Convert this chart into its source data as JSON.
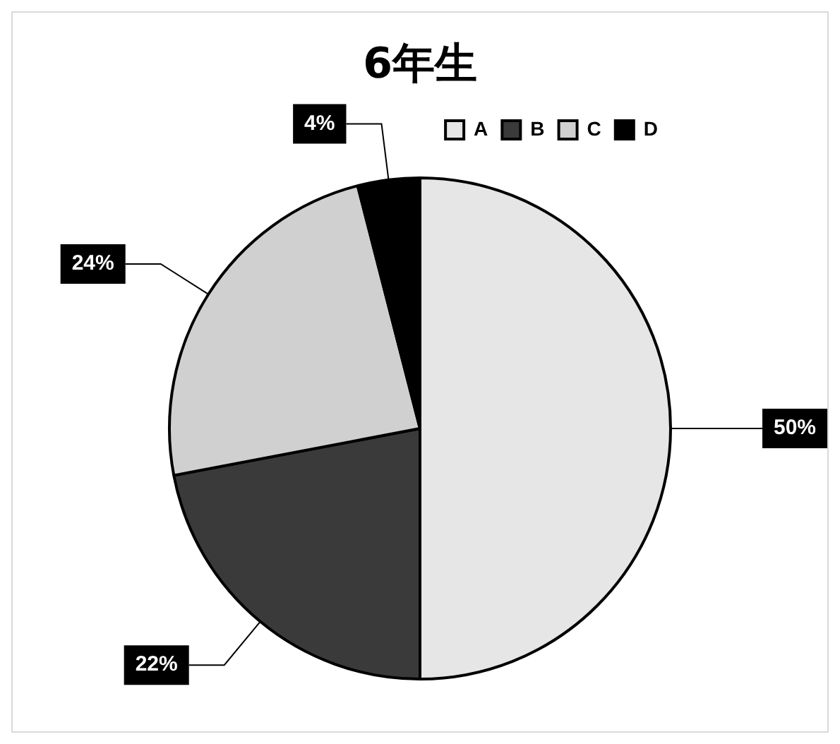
{
  "chart_data": {
    "type": "pie",
    "title": "6年生",
    "categories": [
      "A",
      "B",
      "C",
      "D"
    ],
    "values": [
      50,
      22,
      24,
      4
    ],
    "colors": [
      "#e6e6e6",
      "#3a3a3a",
      "#d0d0d0",
      "#000000"
    ],
    "value_labels": [
      "50%",
      "22%",
      "24%",
      "4%"
    ],
    "legend": "top right"
  }
}
